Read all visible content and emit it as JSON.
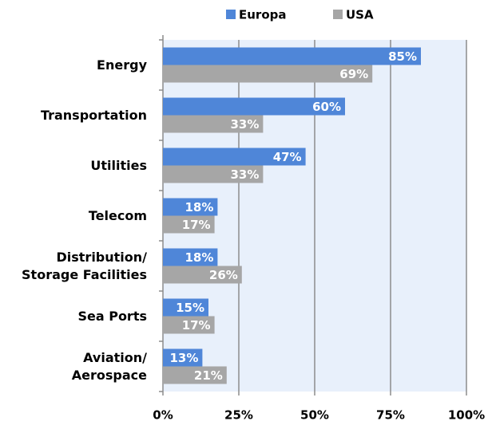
{
  "chart_data": {
    "type": "bar",
    "orientation": "horizontal",
    "categories": [
      "Energy",
      "Transportation",
      "Utilities",
      "Telecom",
      "Distribution/\nStorage Facilities",
      "Sea Ports",
      "Aviation/\nAerospace"
    ],
    "series": [
      {
        "name": "Europa",
        "color": "#4f86d8",
        "values": [
          85,
          60,
          47,
          18,
          18,
          15,
          13
        ],
        "value_labels": [
          "85%",
          "60%",
          "47%",
          "18%",
          "18%",
          "15%",
          "13%"
        ]
      },
      {
        "name": "USA",
        "color": "#a6a6a6",
        "values": [
          69,
          33,
          33,
          17,
          26,
          17,
          21
        ],
        "value_labels": [
          "69%",
          "33%",
          "33%",
          "17%",
          "26%",
          "17%",
          "21%"
        ]
      }
    ],
    "xlim": [
      0,
      100
    ],
    "xticks": [
      {
        "value": 0,
        "label": "0%"
      },
      {
        "value": 25,
        "label": "25%"
      },
      {
        "value": 50,
        "label": "50%"
      },
      {
        "value": 75,
        "label": "75%"
      },
      {
        "value": 100,
        "label": "100%"
      }
    ],
    "grid": true,
    "legend": "top"
  }
}
